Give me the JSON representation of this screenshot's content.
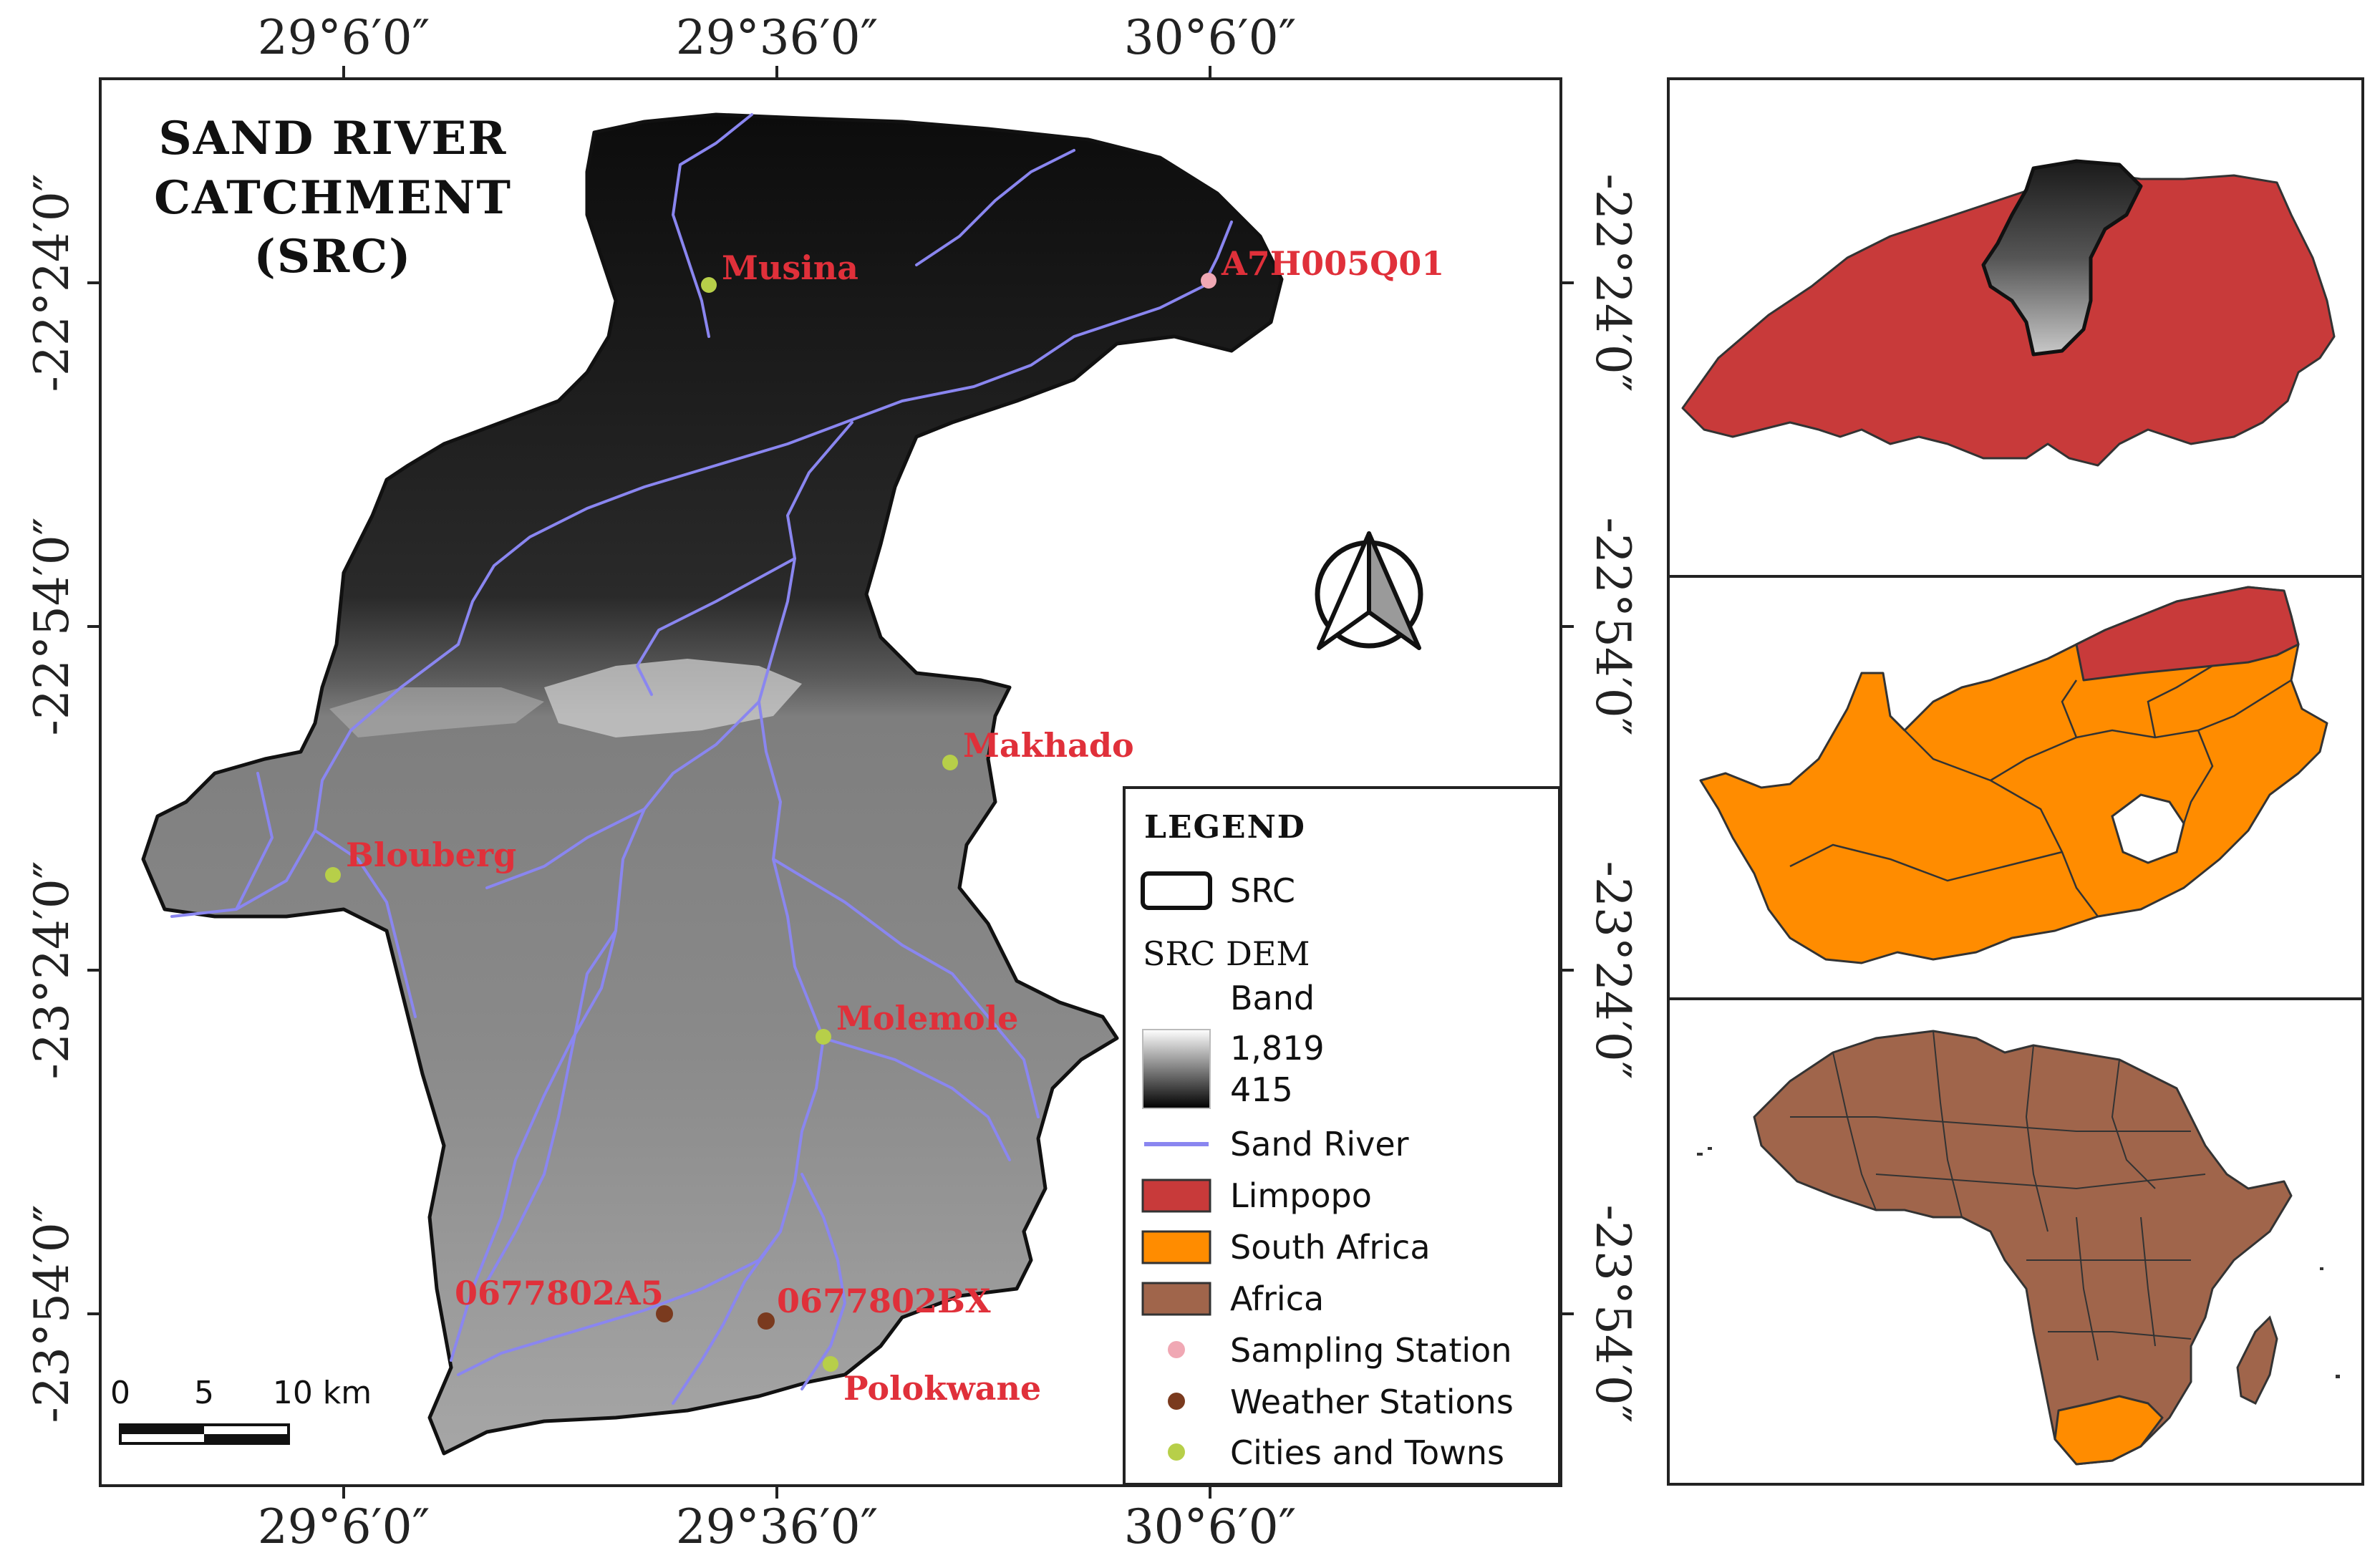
{
  "title": {
    "line1": "SAND RIVER",
    "line2": "CATCHMENT",
    "line3": "(SRC)"
  },
  "coordinates": {
    "top_longitudes": [
      "29°6′0″",
      "29°36′0″",
      "30°6′0″"
    ],
    "bottom_longitudes": [
      "29°6′0″",
      "29°36′0″",
      "30°6′0″"
    ],
    "left_latitudes": [
      "-22°24′0″",
      "-22°54′0″",
      "-23°24′0″",
      "-23°54′0″"
    ],
    "right_latitudes": [
      "-22°24′0″",
      "-22°54′0″",
      "-23°24′0″",
      "-23°54′0″"
    ]
  },
  "places": {
    "musina": "Musina",
    "a7h005q01": "A7H005Q01",
    "makhado": "Makhado",
    "blouberg": "Blouberg",
    "molemole": "Molemole",
    "ws1": "0677802A5",
    "ws2": "0677802BX",
    "polokwane": "Polokwane"
  },
  "scalebar": {
    "tick0": "0",
    "tick1": "5",
    "tick2": "10 km"
  },
  "legend": {
    "title": "LEGEND",
    "src": "SRC",
    "dem_title": "SRC DEM",
    "band": "Band",
    "dem_max": "1,819",
    "dem_min": "415",
    "river": "Sand River",
    "limpopo": "Limpopo",
    "south_africa": "South Africa",
    "africa": "Africa",
    "sampling": "Sampling Station",
    "weather": "Weather Stations",
    "cities": "Cities and Towns"
  },
  "colors": {
    "river": "#8a86f0",
    "limpopo": "#c83a3a",
    "south_africa": "#ff8c00",
    "africa": "#a0654b",
    "sampling_station": "#f0a8b4",
    "weather_station": "#7a3a1e",
    "city": "#b7cf49",
    "label": "#e0303a"
  }
}
